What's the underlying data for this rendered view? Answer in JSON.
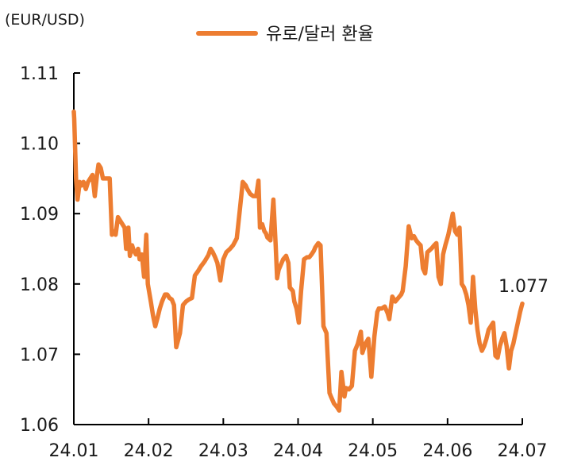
{
  "chart_data": {
    "type": "line",
    "unit_label": "(EUR/USD)",
    "ylim": [
      1.06,
      1.11
    ],
    "y_ticks": [
      "1.06",
      "1.07",
      "1.08",
      "1.09",
      "1.10",
      "1.11"
    ],
    "x_ticks": [
      "24.01",
      "24.02",
      "24.03",
      "24.04",
      "24.05",
      "24.06",
      "24.07"
    ],
    "legend_position": "top-center",
    "grid": false,
    "end_label": "1.077",
    "colors": {
      "line": "#ED7D31",
      "axis": "#000000",
      "text": "#1a1a1a"
    },
    "series": [
      {
        "name": "유로/달러 환율",
        "x": [
          0,
          0.05,
          0.3,
          0.5,
          0.8,
          1,
          1.3,
          1.6,
          1.9,
          2.2,
          2.5,
          2.8,
          3.1,
          3.3,
          3.6,
          3.9,
          4.2,
          4.5,
          4.8,
          5.1,
          5.4,
          5.6,
          5.9,
          6.2,
          6.5,
          6.8,
          7.0,
          7.3,
          7.5,
          7.8,
          8.0,
          8.3,
          8.6,
          8.8,
          9.1,
          9.4,
          9.7,
          9.9,
          10.3,
          10.6,
          10.9,
          11.2,
          11.5,
          11.8,
          12.2,
          12.5,
          12.8,
          13.1,
          13.4,
          13.7,
          14.2,
          14.6,
          15.0,
          15.4,
          15.6,
          15.8,
          16.2,
          16.6,
          17.0,
          17.5,
          18.0,
          18.3,
          18.6,
          18.9,
          19.2,
          19.6,
          20.0,
          20.4,
          20.9,
          21.3,
          21.8,
          22.2,
          22.6,
          23.0,
          23.2,
          23.6,
          24.0,
          24.4,
          24.7,
          24.9,
          25.2,
          25.5,
          25.7,
          25.9,
          26.3,
          26.7,
          27.0,
          27.2,
          27.4,
          27.6,
          28.0,
          28.4,
          28.7,
          28.9,
          29.3,
          29.5,
          29.8,
          30.1,
          30.4,
          30.8,
          31.2,
          31.5,
          31.8,
          32.1,
          32.3,
          32.7,
          33.0,
          33.4,
          33.8,
          34.2,
          34.4,
          34.8,
          35.2,
          35.5,
          35.8,
          36.2,
          36.4,
          36.8,
          37.2,
          37.6,
          38.0,
          38.4,
          38.6,
          39.0,
          39.4,
          39.8,
          40.2,
          40.6,
          40.8,
          41.2,
          41.6,
          42.0,
          42.2,
          42.6,
          43.0,
          43.4,
          43.8,
          44.0,
          44.4,
          44.8,
          45.2,
          45.5,
          45.8,
          46.1,
          46.4,
          46.7,
          47.0,
          47.3,
          47.6,
          47.9,
          48.2,
          48.5,
          48.8,
          49.1,
          49.4,
          49.7,
          50.1,
          50.4,
          50.7,
          51.0,
          51.3,
          51.6,
          51.9,
          52.2,
          52.5,
          52.8,
          53.1,
          53.4,
          53.7,
          54.0,
          54.3,
          54.6,
          54.9,
          55.2,
          55.5,
          55.8,
          56.1,
          56.4,
          56.7,
          57.0,
          57.3,
          57.6,
          57.9,
          58.2,
          58.5,
          58.8,
          59.1,
          59.4,
          59.7,
          60.0
        ],
        "values": [
          1.1045,
          1.1035,
          1.095,
          1.092,
          1.0945,
          1.094,
          1.0945,
          1.0935,
          1.0945,
          1.095,
          1.0955,
          1.0925,
          1.0955,
          1.097,
          1.0965,
          1.095,
          1.095,
          1.095,
          1.095,
          1.087,
          1.0875,
          1.087,
          1.0895,
          1.089,
          1.0885,
          1.088,
          1.085,
          1.088,
          1.084,
          1.0855,
          1.0848,
          1.0842,
          1.085,
          1.0835,
          1.0842,
          1.081,
          1.087,
          1.08,
          1.0775,
          1.0755,
          1.074,
          1.0752,
          1.0765,
          1.0775,
          1.0785,
          1.0785,
          1.078,
          1.0778,
          1.077,
          1.071,
          1.073,
          1.077,
          1.0775,
          1.0778,
          1.0779,
          1.078,
          1.0812,
          1.0818,
          1.0825,
          1.0832,
          1.0841,
          1.085,
          1.0845,
          1.0838,
          1.083,
          1.0805,
          1.0835,
          1.0845,
          1.085,
          1.0855,
          1.0865,
          1.0905,
          1.0945,
          1.094,
          1.0935,
          1.0928,
          1.0925,
          1.0925,
          1.0947,
          1.088,
          1.0885,
          1.0875,
          1.0872,
          1.0866,
          1.0862,
          1.092,
          1.0855,
          1.0808,
          1.082,
          1.0825,
          1.0835,
          1.084,
          1.083,
          1.0795,
          1.079,
          1.0775,
          1.0765,
          1.0745,
          1.079,
          1.0835,
          1.0838,
          1.0838,
          1.0842,
          1.0847,
          1.0852,
          1.0858,
          1.0855,
          1.074,
          1.073,
          1.0645,
          1.064,
          1.063,
          1.0625,
          1.062,
          1.0675,
          1.064,
          1.0652,
          1.065,
          1.0655,
          1.0705,
          1.0715,
          1.0732,
          1.0702,
          1.0715,
          1.0722,
          1.0668,
          1.0725,
          1.076,
          1.0765,
          1.0765,
          1.0768,
          1.0758,
          1.075,
          1.0782,
          1.0775,
          1.078,
          1.0785,
          1.079,
          1.0825,
          1.0882,
          1.0865,
          1.0868,
          1.0862,
          1.0858,
          1.0855,
          1.0822,
          1.0815,
          1.0845,
          1.0848,
          1.0851,
          1.0855,
          1.0858,
          1.081,
          1.08,
          1.0842,
          1.0855,
          1.087,
          1.0885,
          1.09,
          1.0875,
          1.087,
          1.088,
          1.08,
          1.0795,
          1.0785,
          1.077,
          1.0745,
          1.081,
          1.0765,
          1.0735,
          1.0715,
          1.0705,
          1.0712,
          1.0722,
          1.0735,
          1.074,
          1.0745,
          1.0698,
          1.0695,
          1.0712,
          1.0722,
          1.073,
          1.0712,
          1.068,
          1.0705,
          1.0715,
          1.073,
          1.0745,
          1.076,
          1.0772
        ]
      }
    ]
  }
}
